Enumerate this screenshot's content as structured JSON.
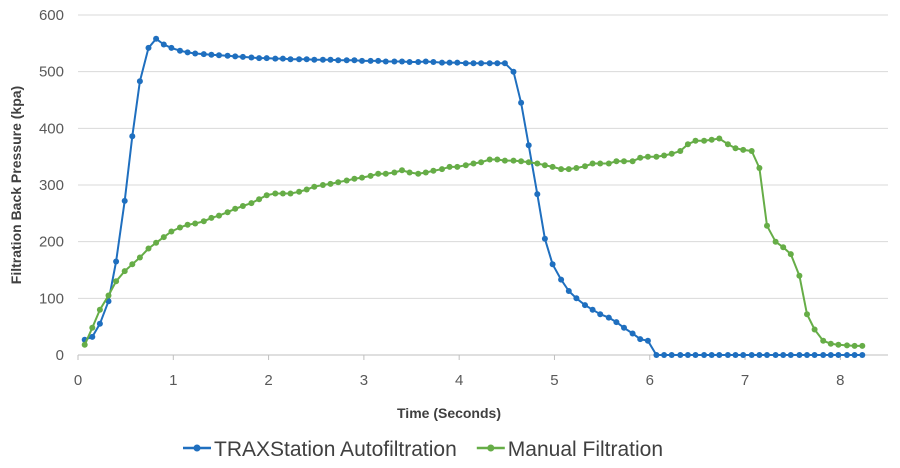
{
  "chart_data": {
    "type": "line",
    "title": "",
    "xlabel": "Time (Seconds)",
    "ylabel": "Filtration Back Pressure (kpa)",
    "xlim": [
      0,
      8.5
    ],
    "ylim": [
      0,
      600
    ],
    "x_ticks": [
      0,
      1,
      2,
      3,
      4,
      5,
      6,
      7,
      8
    ],
    "y_ticks": [
      0,
      100,
      200,
      300,
      400,
      500,
      600
    ],
    "grid": "horizontal",
    "legend_position": "bottom",
    "series": [
      {
        "name": "TRAXStation Autofiltration",
        "color": "#1f6fbf",
        "points": [
          [
            0.07,
            27
          ],
          [
            0.15,
            32
          ],
          [
            0.23,
            55
          ],
          [
            0.32,
            95
          ],
          [
            0.4,
            165
          ],
          [
            0.49,
            272
          ],
          [
            0.57,
            386
          ],
          [
            0.65,
            483
          ],
          [
            0.74,
            542
          ],
          [
            0.82,
            558
          ],
          [
            0.9,
            548
          ],
          [
            0.98,
            542
          ],
          [
            1.07,
            537
          ],
          [
            1.15,
            534
          ],
          [
            1.23,
            532
          ],
          [
            1.32,
            531
          ],
          [
            1.4,
            530
          ],
          [
            1.48,
            529
          ],
          [
            1.57,
            528
          ],
          [
            1.65,
            527
          ],
          [
            1.73,
            526
          ],
          [
            1.82,
            525
          ],
          [
            1.9,
            524
          ],
          [
            1.98,
            524
          ],
          [
            2.07,
            523
          ],
          [
            2.15,
            523
          ],
          [
            2.23,
            522
          ],
          [
            2.32,
            522
          ],
          [
            2.4,
            522
          ],
          [
            2.48,
            521
          ],
          [
            2.57,
            521
          ],
          [
            2.65,
            521
          ],
          [
            2.73,
            520
          ],
          [
            2.82,
            520
          ],
          [
            2.9,
            520
          ],
          [
            2.98,
            519
          ],
          [
            3.07,
            519
          ],
          [
            3.15,
            519
          ],
          [
            3.23,
            518
          ],
          [
            3.32,
            518
          ],
          [
            3.4,
            518
          ],
          [
            3.48,
            517
          ],
          [
            3.57,
            517
          ],
          [
            3.65,
            518
          ],
          [
            3.73,
            517
          ],
          [
            3.82,
            516
          ],
          [
            3.9,
            516
          ],
          [
            3.98,
            516
          ],
          [
            4.07,
            515
          ],
          [
            4.15,
            515
          ],
          [
            4.23,
            515
          ],
          [
            4.32,
            515
          ],
          [
            4.4,
            515
          ],
          [
            4.48,
            515
          ],
          [
            4.57,
            500
          ],
          [
            4.65,
            445
          ],
          [
            4.73,
            370
          ],
          [
            4.82,
            284
          ],
          [
            4.9,
            205
          ],
          [
            4.98,
            160
          ],
          [
            5.07,
            133
          ],
          [
            5.15,
            113
          ],
          [
            5.23,
            100
          ],
          [
            5.32,
            88
          ],
          [
            5.4,
            80
          ],
          [
            5.48,
            72
          ],
          [
            5.57,
            66
          ],
          [
            5.65,
            58
          ],
          [
            5.73,
            48
          ],
          [
            5.82,
            38
          ],
          [
            5.9,
            28
          ],
          [
            5.98,
            25
          ],
          [
            6.07,
            0
          ],
          [
            6.15,
            0
          ],
          [
            6.23,
            0
          ],
          [
            6.32,
            0
          ],
          [
            6.4,
            0
          ],
          [
            6.48,
            0
          ],
          [
            6.57,
            0
          ],
          [
            6.65,
            0
          ],
          [
            6.73,
            0
          ],
          [
            6.82,
            0
          ],
          [
            6.9,
            0
          ],
          [
            6.98,
            0
          ],
          [
            7.07,
            0
          ],
          [
            7.15,
            0
          ],
          [
            7.23,
            0
          ],
          [
            7.32,
            0
          ],
          [
            7.4,
            0
          ],
          [
            7.48,
            0
          ],
          [
            7.57,
            0
          ],
          [
            7.65,
            0
          ],
          [
            7.73,
            0
          ],
          [
            7.82,
            0
          ],
          [
            7.9,
            0
          ],
          [
            7.98,
            0
          ],
          [
            8.07,
            0
          ],
          [
            8.15,
            0
          ],
          [
            8.23,
            0
          ]
        ]
      },
      {
        "name": "Manual Filtration",
        "color": "#66ad47",
        "points": [
          [
            0.07,
            18
          ],
          [
            0.15,
            48
          ],
          [
            0.23,
            80
          ],
          [
            0.32,
            105
          ],
          [
            0.4,
            130
          ],
          [
            0.49,
            148
          ],
          [
            0.57,
            160
          ],
          [
            0.65,
            172
          ],
          [
            0.74,
            188
          ],
          [
            0.82,
            198
          ],
          [
            0.9,
            208
          ],
          [
            0.98,
            218
          ],
          [
            1.07,
            225
          ],
          [
            1.15,
            230
          ],
          [
            1.23,
            232
          ],
          [
            1.32,
            236
          ],
          [
            1.4,
            242
          ],
          [
            1.48,
            246
          ],
          [
            1.57,
            252
          ],
          [
            1.65,
            258
          ],
          [
            1.73,
            263
          ],
          [
            1.82,
            268
          ],
          [
            1.9,
            275
          ],
          [
            1.98,
            282
          ],
          [
            2.07,
            285
          ],
          [
            2.15,
            285
          ],
          [
            2.23,
            285
          ],
          [
            2.32,
            288
          ],
          [
            2.4,
            292
          ],
          [
            2.48,
            297
          ],
          [
            2.57,
            300
          ],
          [
            2.65,
            302
          ],
          [
            2.73,
            305
          ],
          [
            2.82,
            308
          ],
          [
            2.9,
            311
          ],
          [
            2.98,
            313
          ],
          [
            3.07,
            316
          ],
          [
            3.15,
            320
          ],
          [
            3.23,
            320
          ],
          [
            3.32,
            322
          ],
          [
            3.4,
            326
          ],
          [
            3.48,
            322
          ],
          [
            3.57,
            320
          ],
          [
            3.65,
            322
          ],
          [
            3.73,
            325
          ],
          [
            3.82,
            328
          ],
          [
            3.9,
            332
          ],
          [
            3.98,
            332
          ],
          [
            4.07,
            335
          ],
          [
            4.15,
            338
          ],
          [
            4.23,
            340
          ],
          [
            4.32,
            345
          ],
          [
            4.4,
            345
          ],
          [
            4.48,
            343
          ],
          [
            4.57,
            343
          ],
          [
            4.65,
            342
          ],
          [
            4.73,
            340
          ],
          [
            4.82,
            338
          ],
          [
            4.9,
            335
          ],
          [
            4.98,
            332
          ],
          [
            5.07,
            328
          ],
          [
            5.15,
            328
          ],
          [
            5.23,
            330
          ],
          [
            5.32,
            333
          ],
          [
            5.4,
            338
          ],
          [
            5.48,
            338
          ],
          [
            5.57,
            338
          ],
          [
            5.65,
            342
          ],
          [
            5.73,
            342
          ],
          [
            5.82,
            342
          ],
          [
            5.9,
            348
          ],
          [
            5.98,
            350
          ],
          [
            6.07,
            350
          ],
          [
            6.15,
            352
          ],
          [
            6.23,
            355
          ],
          [
            6.32,
            360
          ],
          [
            6.4,
            372
          ],
          [
            6.48,
            378
          ],
          [
            6.57,
            378
          ],
          [
            6.65,
            380
          ],
          [
            6.73,
            382
          ],
          [
            6.82,
            372
          ],
          [
            6.9,
            365
          ],
          [
            6.98,
            362
          ],
          [
            7.07,
            360
          ],
          [
            7.15,
            330
          ],
          [
            7.23,
            228
          ],
          [
            7.32,
            200
          ],
          [
            7.4,
            190
          ],
          [
            7.48,
            178
          ],
          [
            7.57,
            140
          ],
          [
            7.65,
            72
          ],
          [
            7.73,
            45
          ],
          [
            7.82,
            25
          ],
          [
            7.9,
            20
          ],
          [
            7.98,
            18
          ],
          [
            8.07,
            17
          ],
          [
            8.15,
            16
          ],
          [
            8.23,
            16
          ]
        ]
      }
    ]
  }
}
